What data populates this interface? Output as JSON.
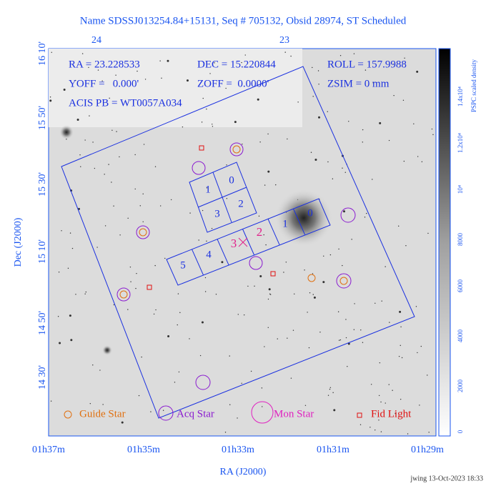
{
  "title": "Name SDSSJ013254.84+15131, Seq # 705132, Obsid 28974, ST Scheduled",
  "info": {
    "ra": "RA = 23.228533",
    "dec": "DEC = 15.220844",
    "roll": "ROLL = 157.9988",
    "yoff": "YOFF =   0.000'",
    "zoff": "ZOFF =  0.0000'",
    "zsim": "ZSIM = 0 mm",
    "acis": "ACIS PB = WT0057A034"
  },
  "top_axis": {
    "ticks": [
      "24",
      "23"
    ]
  },
  "left_axis": {
    "label": "Dec (J2000)",
    "ticks": [
      "16 10'",
      "15 50'",
      "15 30'",
      "15 10'",
      "14 50'",
      "14 30'"
    ]
  },
  "bottom_axis": {
    "label": "RA (J2000)",
    "ticks": [
      "01h37m",
      "01h35m",
      "01h33m",
      "01h31m",
      "01h29m"
    ]
  },
  "colorbar": {
    "label": "PSPC scaled density",
    "ticks": [
      "0",
      "2000",
      "4000",
      "6000",
      "8000",
      "10⁴",
      "1.2x10⁴",
      "1.4x10⁴"
    ]
  },
  "i_chips": [
    "0",
    "1",
    "3",
    "2"
  ],
  "s_chips": [
    "5",
    "4",
    "3",
    "2",
    "1",
    "0"
  ],
  "legend": [
    "Guide Star",
    "Acq Star",
    "Mon Star",
    "Fid Light"
  ],
  "footer": "jwing 13-Oct-2023 18:33"
}
